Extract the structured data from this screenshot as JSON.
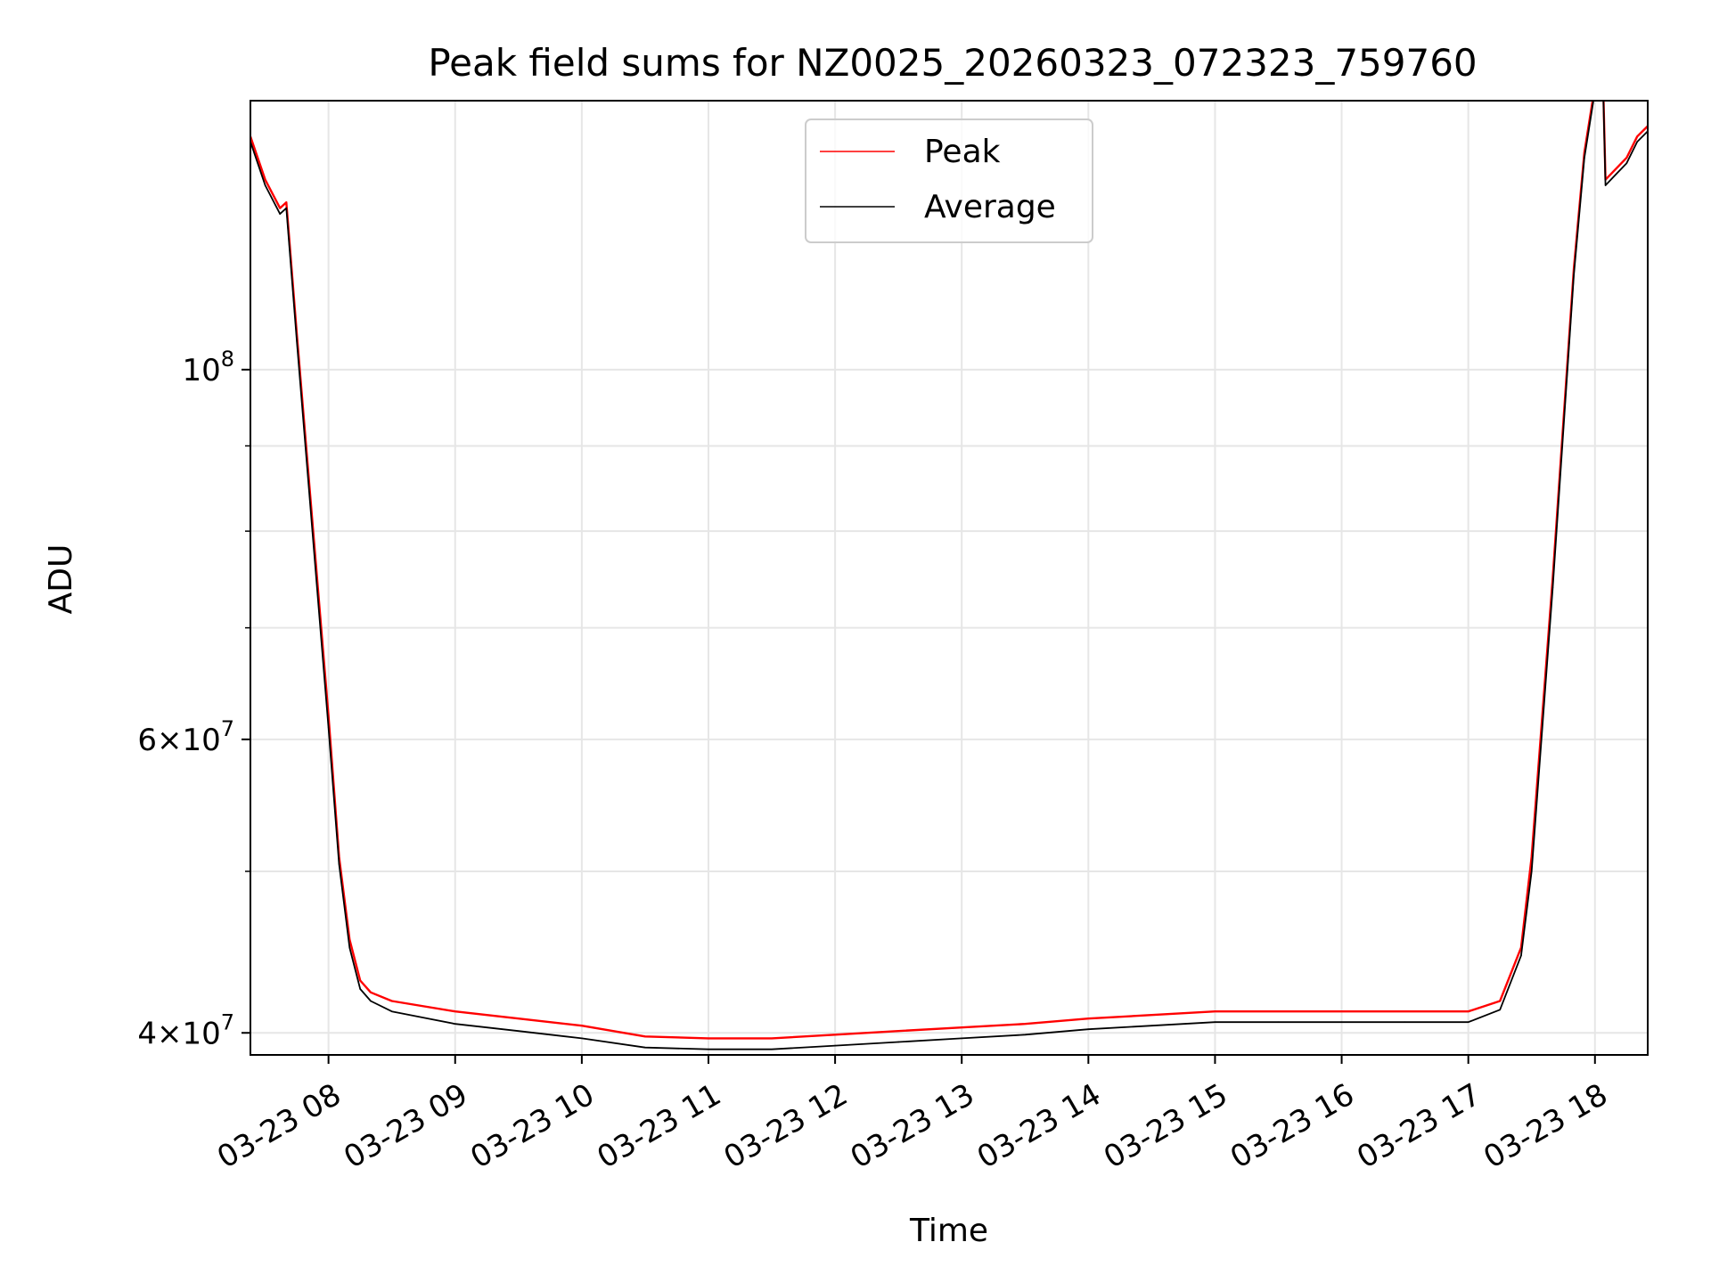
{
  "chart_data": {
    "type": "line",
    "title": "Peak field sums for NZ0025_20260323_072323_759760",
    "xlabel": "Time",
    "ylabel": "ADU",
    "yscale": "log",
    "grid": true,
    "legend_position": "top-center",
    "xlim": [
      "2026-03-23 07:23",
      "2026-03-23 18:25"
    ],
    "ylim": [
      38800000,
      145000000
    ],
    "x_ticks": [
      "2026-03-23 08:00",
      "2026-03-23 09:00",
      "2026-03-23 10:00",
      "2026-03-23 11:00",
      "2026-03-23 12:00",
      "2026-03-23 13:00",
      "2026-03-23 14:00",
      "2026-03-23 15:00",
      "2026-03-23 16:00",
      "2026-03-23 17:00",
      "2026-03-23 18:00"
    ],
    "x_tick_labels": [
      "03-23 08",
      "03-23 09",
      "03-23 10",
      "03-23 11",
      "03-23 12",
      "03-23 13",
      "03-23 14",
      "03-23 15",
      "03-23 16",
      "03-23 17",
      "03-23 18"
    ],
    "y_ticks": [
      {
        "value": 40000000,
        "mantissa": "4",
        "exponent": "7"
      },
      {
        "value": 60000000,
        "mantissa": "6",
        "exponent": "7"
      },
      {
        "value": 100000000,
        "mantissa": "",
        "exponent": "8"
      }
    ],
    "y_minor_ticks": [
      50000000,
      70000000,
      80000000,
      90000000
    ],
    "series": [
      {
        "name": "Peak",
        "color": "#ff0000",
        "x": [
          "2026-03-23 07:23",
          "2026-03-23 07:30",
          "2026-03-23 07:37",
          "2026-03-23 07:40",
          "2026-03-23 07:45",
          "2026-03-23 08:00",
          "2026-03-23 08:05",
          "2026-03-23 08:10",
          "2026-03-23 08:15",
          "2026-03-23 08:20",
          "2026-03-23 08:30",
          "2026-03-23 09:00",
          "2026-03-23 09:30",
          "2026-03-23 10:00",
          "2026-03-23 10:30",
          "2026-03-23 11:00",
          "2026-03-23 11:30",
          "2026-03-23 12:00",
          "2026-03-23 12:30",
          "2026-03-23 13:00",
          "2026-03-23 13:30",
          "2026-03-23 14:00",
          "2026-03-23 14:30",
          "2026-03-23 15:00",
          "2026-03-23 15:30",
          "2026-03-23 16:00",
          "2026-03-23 16:30",
          "2026-03-23 17:00",
          "2026-03-23 17:15",
          "2026-03-23 17:25",
          "2026-03-23 17:30",
          "2026-03-23 17:40",
          "2026-03-23 17:50",
          "2026-03-23 17:55",
          "2026-03-23 18:00",
          "2026-03-23 18:02",
          "2026-03-23 18:04",
          "2026-03-23 18:05",
          "2026-03-23 18:10",
          "2026-03-23 18:15",
          "2026-03-23 18:20",
          "2026-03-23 18:25"
        ],
        "y": [
          138000000,
          130000000,
          125000000,
          126000000,
          105000000,
          62000000,
          51000000,
          45500000,
          43000000,
          42300000,
          41800000,
          41200000,
          40800000,
          40400000,
          39800000,
          39700000,
          39700000,
          39900000,
          40100000,
          40300000,
          40500000,
          40800000,
          41000000,
          41200000,
          41200000,
          41200000,
          41200000,
          41200000,
          41800000,
          45000000,
          51000000,
          75000000,
          115000000,
          135000000,
          148000000,
          148000000,
          146000000,
          130000000,
          132000000,
          134000000,
          138000000,
          140000000
        ]
      },
      {
        "name": "Average",
        "color": "#000000",
        "x": [
          "2026-03-23 07:23",
          "2026-03-23 07:30",
          "2026-03-23 07:37",
          "2026-03-23 07:40",
          "2026-03-23 07:45",
          "2026-03-23 08:00",
          "2026-03-23 08:05",
          "2026-03-23 08:10",
          "2026-03-23 08:15",
          "2026-03-23 08:20",
          "2026-03-23 08:30",
          "2026-03-23 09:00",
          "2026-03-23 09:30",
          "2026-03-23 10:00",
          "2026-03-23 10:30",
          "2026-03-23 11:00",
          "2026-03-23 11:30",
          "2026-03-23 12:00",
          "2026-03-23 12:30",
          "2026-03-23 13:00",
          "2026-03-23 13:30",
          "2026-03-23 14:00",
          "2026-03-23 14:30",
          "2026-03-23 15:00",
          "2026-03-23 15:30",
          "2026-03-23 16:00",
          "2026-03-23 16:30",
          "2026-03-23 17:00",
          "2026-03-23 17:15",
          "2026-03-23 17:25",
          "2026-03-23 17:30",
          "2026-03-23 17:40",
          "2026-03-23 17:50",
          "2026-03-23 17:55",
          "2026-03-23 18:00",
          "2026-03-23 18:02",
          "2026-03-23 18:04",
          "2026-03-23 18:05",
          "2026-03-23 18:10",
          "2026-03-23 18:15",
          "2026-03-23 18:20",
          "2026-03-23 18:25"
        ],
        "y": [
          137000000,
          129000000,
          124000000,
          125000000,
          104000000,
          61000000,
          50500000,
          45000000,
          42500000,
          41800000,
          41200000,
          40500000,
          40100000,
          39700000,
          39200000,
          39100000,
          39100000,
          39300000,
          39500000,
          39700000,
          39900000,
          40200000,
          40400000,
          40600000,
          40600000,
          40600000,
          40600000,
          40600000,
          41300000,
          44500000,
          50000000,
          74000000,
          114000000,
          134000000,
          147000000,
          147000000,
          145000000,
          129000000,
          131000000,
          133000000,
          137000000,
          139000000
        ]
      }
    ]
  }
}
